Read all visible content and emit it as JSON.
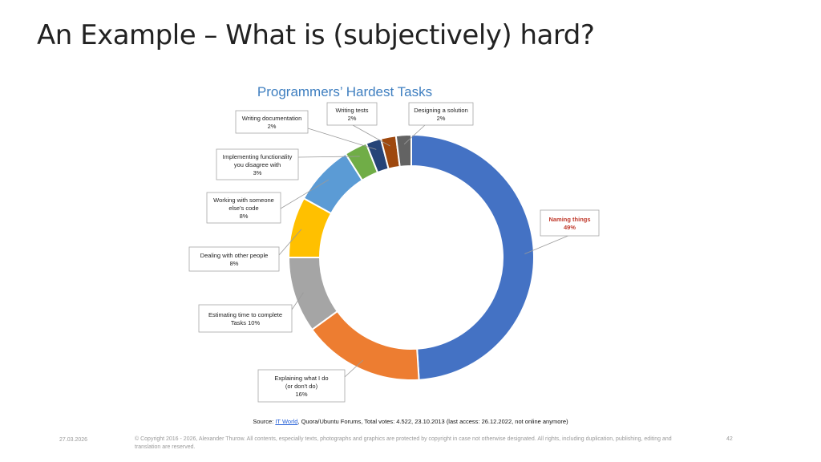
{
  "slide": {
    "title": "An Example – What is (subjectively) hard?"
  },
  "chart_data": {
    "type": "pie",
    "variant": "donut",
    "title": "Programmers’ Hardest Tasks",
    "title_color": "#3f7fc0",
    "start_angle_deg": 0,
    "direction": "clockwise",
    "slices": [
      {
        "label_lines": [
          "Naming things",
          "49%"
        ],
        "value": 49,
        "color": "#4472c4",
        "label_color": "#c0392b"
      },
      {
        "label_lines": [
          "Explaining what I do",
          "(or don't do)",
          "16%"
        ],
        "value": 16,
        "color": "#ed7d31",
        "label_color": "#222222"
      },
      {
        "label_lines": [
          "Estimating time to complete",
          "Tasks 10%"
        ],
        "value": 10,
        "color": "#a5a5a5",
        "label_color": "#222222"
      },
      {
        "label_lines": [
          "Dealing with other people",
          "8%"
        ],
        "value": 8,
        "color": "#ffc000",
        "label_color": "#222222"
      },
      {
        "label_lines": [
          "Working with someone",
          "else's code",
          "8%"
        ],
        "value": 8,
        "color": "#5b9bd5",
        "label_color": "#222222"
      },
      {
        "label_lines": [
          "Implementing functionality",
          "you disagree with",
          "3%"
        ],
        "value": 3,
        "color": "#70ad47",
        "label_color": "#222222"
      },
      {
        "label_lines": [
          "Writing documentation",
          "2%"
        ],
        "value": 2,
        "color": "#264478",
        "label_color": "#222222"
      },
      {
        "label_lines": [
          "Writing tests",
          "2%"
        ],
        "value": 2,
        "color": "#9e480e",
        "label_color": "#222222"
      },
      {
        "label_lines": [
          "Designing a solution",
          "2%"
        ],
        "value": 2,
        "color": "#636363",
        "label_color": "#222222"
      }
    ]
  },
  "source": {
    "prefix": "Source: ",
    "link_text": "IT World",
    "suffix": ", Quora/Ubuntu Forums, Total votes: 4.522, 23.10.2013 (last access: 26.12.2022, not online anymore)"
  },
  "footer": {
    "date": "27.03.2026",
    "copyright": "© Copyright 2016 - 2026, Alexander Thurow. All contents, especially texts, photographs and graphics are protected by copyright in case not otherwise designated. All rights, including duplication, publishing, editing and translation are reserved.",
    "page_number": "42"
  }
}
